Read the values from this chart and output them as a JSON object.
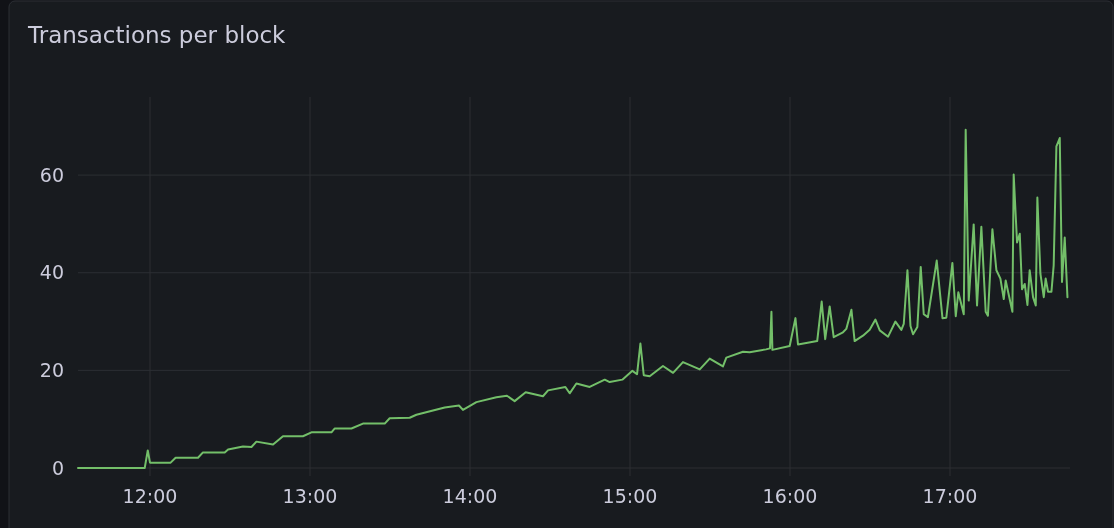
{
  "chart_data": {
    "type": "line",
    "title": "Transactions per block",
    "xlim": [
      11.55,
      17.75
    ],
    "xticks": [
      {
        "value": 12,
        "label": "12:00"
      },
      {
        "value": 13,
        "label": "13:00"
      },
      {
        "value": 14,
        "label": "14:00"
      },
      {
        "value": 15,
        "label": "15:00"
      },
      {
        "value": 16,
        "label": "16:00"
      },
      {
        "value": 17,
        "label": "17:00"
      }
    ],
    "ylim": [
      0,
      76
    ],
    "yticks": [
      0,
      20,
      40,
      60
    ],
    "grid": true,
    "series": [
      {
        "color": "#73bf69",
        "x": [
          11.55,
          11.967,
          11.986,
          12.0,
          12.129,
          12.16,
          12.3,
          12.331,
          12.467,
          12.488,
          12.581,
          12.634,
          12.665,
          12.769,
          12.831,
          12.956,
          13.009,
          13.134,
          13.155,
          13.259,
          13.331,
          13.467,
          13.498,
          13.623,
          13.665,
          13.842,
          13.931,
          13.956,
          14.04,
          14.165,
          14.231,
          14.279,
          14.348,
          14.456,
          14.488,
          14.596,
          14.623,
          14.665,
          14.748,
          14.842,
          14.873,
          14.952,
          15.015,
          15.044,
          15.065,
          15.086,
          15.123,
          15.206,
          15.269,
          15.331,
          15.436,
          15.498,
          15.581,
          15.602,
          15.706,
          15.748,
          15.85,
          15.875,
          15.884,
          15.89,
          15.998,
          16.034,
          16.05,
          16.17,
          16.198,
          16.22,
          16.248,
          16.273,
          16.331,
          16.352,
          16.384,
          16.404,
          16.456,
          16.498,
          16.534,
          16.561,
          16.613,
          16.659,
          16.696,
          16.711,
          16.734,
          16.753,
          16.769,
          16.796,
          16.817,
          16.836,
          16.862,
          16.917,
          16.953,
          16.977,
          17.015,
          17.036,
          17.052,
          17.086,
          17.098,
          17.117,
          17.148,
          17.169,
          17.196,
          17.223,
          17.237,
          17.265,
          17.29,
          17.315,
          17.336,
          17.348,
          17.39,
          17.398,
          17.419,
          17.436,
          17.45,
          17.467,
          17.484,
          17.498,
          17.519,
          17.536,
          17.546,
          17.565,
          17.586,
          17.598,
          17.613,
          17.634,
          17.648,
          17.665,
          17.686,
          17.7,
          17.717,
          17.734
        ],
        "values": [
          0,
          0,
          3.6,
          1.1,
          1.1,
          2.1,
          2.1,
          3.2,
          3.2,
          3.8,
          4.4,
          4.3,
          5.4,
          4.8,
          6.5,
          6.5,
          7.3,
          7.3,
          8.1,
          8.1,
          9.1,
          9.1,
          10.2,
          10.3,
          10.9,
          12.4,
          12.8,
          11.9,
          13.5,
          14.5,
          14.8,
          13.7,
          15.5,
          14.7,
          15.9,
          16.6,
          15.3,
          17.3,
          16.6,
          18.1,
          17.6,
          18.1,
          19.9,
          19.2,
          25.5,
          19.0,
          18.8,
          20.9,
          19.5,
          21.7,
          20.2,
          22.4,
          20.8,
          22.6,
          23.8,
          23.7,
          24.3,
          24.5,
          32.0,
          24.2,
          25.0,
          30.7,
          25.3,
          26.0,
          34.1,
          26.4,
          33.1,
          26.8,
          27.8,
          28.5,
          32.4,
          26.0,
          27.1,
          28.3,
          30.4,
          28.2,
          26.9,
          30.0,
          28.3,
          29.5,
          40.5,
          29.1,
          27.4,
          28.9,
          41.2,
          31.5,
          30.9,
          42.5,
          30.7,
          30.8,
          42.0,
          31.1,
          36.0,
          31.5,
          69.3,
          34.3,
          49.9,
          33.3,
          49.4,
          32.0,
          31.2,
          48.9,
          40.5,
          38.8,
          34.6,
          38.4,
          32.0,
          60.1,
          46.2,
          48.0,
          36.6,
          37.7,
          33.4,
          40.5,
          35.0,
          33.3,
          55.4,
          39.8,
          35.0,
          38.8,
          36.1,
          36.1,
          41.5,
          65.9,
          67.6,
          38.1,
          47.2,
          35.0
        ]
      }
    ]
  }
}
